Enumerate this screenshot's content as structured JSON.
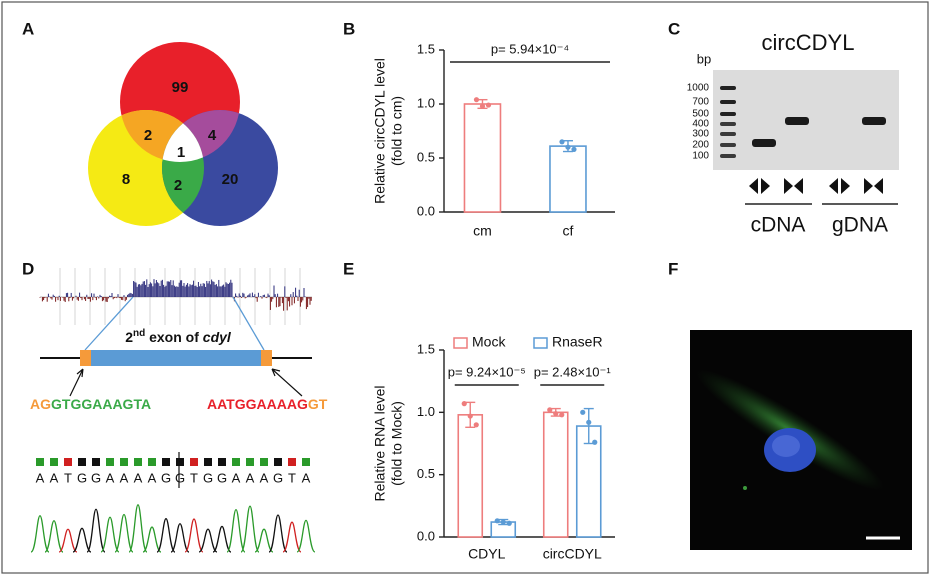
{
  "panel_labels": [
    "A",
    "B",
    "C",
    "D",
    "E",
    "F"
  ],
  "venn": {
    "counts": [
      99,
      2,
      4,
      1,
      8,
      2,
      20
    ]
  },
  "chart_data": [
    {
      "type": "bar",
      "ylabel": [
        "Relative circCDYL level",
        "(fold to cm)"
      ],
      "categories": [
        "cm",
        "cf"
      ],
      "values": [
        1.0,
        0.61
      ],
      "errors": [
        0.04,
        0.05
      ],
      "points": [
        [
          1.04,
          0.98,
          0.99
        ],
        [
          0.65,
          0.6,
          0.58
        ]
      ],
      "colors": [
        "#ee7d7d",
        "#5b9bd5"
      ],
      "ylim": [
        0,
        1.5
      ],
      "yticks": [
        {
          "value": 0,
          "label": "0.0"
        },
        {
          "value": 0.5,
          "label": "0.5"
        },
        {
          "value": 1,
          "label": "1.0"
        },
        {
          "value": 1.5,
          "label": "1.5"
        }
      ],
      "annotations": [
        "p= 5.94×10⁻⁴"
      ]
    },
    {
      "type": "grouped_bar",
      "ylabel": [
        "Relative RNA level",
        "(fold to Mock)"
      ],
      "categories": [
        "CDYL",
        "circCDYL"
      ],
      "series": [
        {
          "name": "Mock",
          "color": "#ee7d7d",
          "values": [
            0.98,
            1.0
          ],
          "errors": [
            0.1,
            0.03
          ],
          "points": [
            [
              1.07,
              0.97,
              0.9
            ],
            [
              1.02,
              0.99,
              0.98
            ]
          ]
        },
        {
          "name": "RnaseR",
          "color": "#5b9bd5",
          "values": [
            0.12,
            0.89
          ],
          "errors": [
            0.02,
            0.14
          ],
          "points": [
            [
              0.13,
              0.12,
              0.11
            ],
            [
              1.0,
              0.92,
              0.76
            ]
          ]
        }
      ],
      "ylim": [
        0,
        1.5
      ],
      "yticks": [
        {
          "value": 0,
          "label": "0.0"
        },
        {
          "value": 0.5,
          "label": "0.5"
        },
        {
          "value": 1,
          "label": "1.0"
        },
        {
          "value": 1.5,
          "label": "1.5"
        }
      ],
      "annotations": [
        "p= 9.24×10⁻⁵",
        "p= 2.48×10⁻¹"
      ]
    }
  ],
  "gel": {
    "title": "circCDYL",
    "unit": "bp",
    "ladder": [
      1000,
      700,
      500,
      400,
      300,
      200,
      100
    ],
    "groups": [
      "cDNA",
      "gDNA"
    ]
  },
  "sequence": {
    "exon_label": [
      "2",
      "nd",
      " exon of ",
      "cdyl"
    ],
    "left": [
      "AG",
      "GTGGAAAGTA"
    ],
    "right": [
      "AATGGAAAAG",
      "GT"
    ],
    "read": [
      "A",
      "A",
      "T",
      "G",
      "G",
      "A",
      "A",
      "A",
      "A",
      "G",
      "G",
      "T",
      "G",
      "G",
      "A",
      "A",
      "A",
      "G",
      "T",
      "A"
    ]
  }
}
